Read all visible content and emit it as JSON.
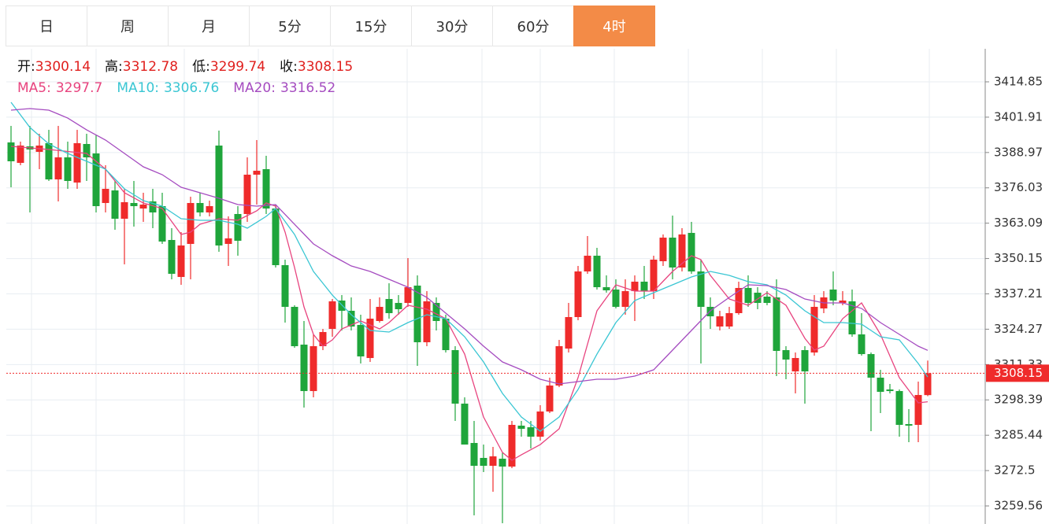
{
  "tabs": {
    "items": [
      "日",
      "周",
      "月",
      "5分",
      "15分",
      "30分",
      "60分",
      "4时"
    ],
    "active": 7
  },
  "chart_data": {
    "type": "candlestick",
    "ohlc_labels": [
      "开:",
      "高:",
      "低:",
      "收:"
    ],
    "up_color": "#ef2b2b",
    "down_color": "#1fa53b",
    "open": [
      3392.66,
      3385.17,
      3391.22,
      3389.21,
      3392.38,
      3379.12,
      3387.19,
      3377.97,
      3392.09,
      3388.63,
      3370.48,
      3375.09,
      3364.72,
      3370.48,
      3368.46,
      3371.06,
      3369.33,
      3356.94,
      3343.4,
      3355.5,
      3370.48,
      3367.02,
      3391.51,
      3355.5,
      3366.45,
      3366.45,
      3380.85,
      3382.87,
      3368.46,
      3347.72,
      3332.45,
      3318.62,
      3301.62,
      3318.05,
      3324.38,
      3334.76,
      3331.01,
      3325.82,
      3313.72,
      3327.27,
      3335.33,
      3333.89,
      3333.89,
      3340.23,
      3319.49,
      3333.89,
      3328.13,
      3316.61,
      3297.01,
      3282.61,
      3277.14,
      3274.25,
      3276.85,
      3273.97,
      3288.95,
      3288.37,
      3284.91,
      3294.13,
      3303.64,
      3317.18,
      3328.71,
      3345.42,
      3351.18,
      3339.65,
      3338.79,
      3332.45,
      3338.21,
      3341.67,
      3338.21,
      3349.16,
      3357.8,
      3346.86,
      3359.53,
      3345.42,
      3332.45,
      3325.25,
      3325.25,
      3330.15,
      3339.37,
      3337.64,
      3336.2,
      3335.91,
      3316.61,
      3308.82,
      3316.61,
      3315.74,
      3331.87,
      3338.79,
      3333.89,
      3334.47,
      3322.37,
      3315.16,
      3306.52,
      3302.2,
      3301.62,
      3289.52,
      3289.24,
      3300.14
    ],
    "high": [
      3398.71,
      3392.95,
      3398.71,
      3395.83,
      3397.27,
      3398.71,
      3392.95,
      3397.27,
      3395.83,
      3395.26,
      3384.31,
      3378.55,
      3375.67,
      3378.55,
      3374.23,
      3375.67,
      3374.23,
      3361.26,
      3359.82,
      3372.78,
      3374.23,
      3371.34,
      3396.99,
      3365.58,
      3369.33,
      3387.19,
      3393.53,
      3387.77,
      3369.9,
      3349.74,
      3333.03,
      3327.27,
      3322.37,
      3324.38,
      3335.33,
      3336.77,
      3335.91,
      3329.57,
      3335.33,
      3335.91,
      3341.09,
      3336.77,
      3350.31,
      3343.97,
      3338.21,
      3335.91,
      3329.57,
      3318.05,
      3299.32,
      3290.68,
      3282.03,
      3281.17,
      3279.15,
      3290.68,
      3290.68,
      3290.68,
      3296.44,
      3306.52,
      3320.35,
      3333.89,
      3347.43,
      3358.38,
      3354.06,
      3343.97,
      3342.53,
      3342.53,
      3343.97,
      3347.43,
      3351.18,
      3358.96,
      3365.87,
      3361.26,
      3363.57,
      3349.74,
      3335.91,
      3331.01,
      3332.45,
      3341.67,
      3343.97,
      3339.65,
      3338.21,
      3342.53,
      3318.05,
      3315.74,
      3318.05,
      3336.77,
      3338.21,
      3345.42,
      3338.21,
      3338.79,
      3330.15,
      3315.74,
      3309.4,
      3304.22,
      3302.2,
      3295.0,
      3305.08,
      3312.78
    ],
    "low": [
      3376.24,
      3384.31,
      3367.02,
      3382.87,
      3378.55,
      3371.06,
      3375.67,
      3375.67,
      3378.55,
      3367.02,
      3367.02,
      3360.68,
      3348.01,
      3361.84,
      3363.57,
      3361.26,
      3355.5,
      3342.53,
      3340.52,
      3342.53,
      3365.58,
      3365.58,
      3352.62,
      3347.43,
      3351.18,
      3363.57,
      3369.9,
      3366.45,
      3346.86,
      3326.69,
      3317.47,
      3295.57,
      3299.32,
      3316.61,
      3321.5,
      3323.81,
      3323.81,
      3311.71,
      3312.28,
      3326.69,
      3328.13,
      3329.57,
      3332.45,
      3310.84,
      3318.05,
      3323.81,
      3315.74,
      3290.68,
      3282.03,
      3256.1,
      3271.95,
      3264.75,
      3253.22,
      3273.39,
      3284.91,
      3280.59,
      3283.47,
      3293.56,
      3303.06,
      3315.74,
      3327.55,
      3344.55,
      3338.79,
      3337.64,
      3331.87,
      3329.57,
      3327.27,
      3335.33,
      3335.33,
      3347.43,
      3342.53,
      3345.42,
      3344.55,
      3311.71,
      3324.38,
      3323.81,
      3324.38,
      3329.57,
      3332.45,
      3331.59,
      3333.03,
      3307.1,
      3305.95,
      3300.76,
      3297.01,
      3314.59,
      3330.15,
      3333.03,
      3333.03,
      3321.5,
      3314.59,
      3286.93,
      3293.56,
      3300.76,
      3284.91,
      3282.9,
      3282.9,
      3299.74
    ],
    "close": [
      3385.75,
      3391.51,
      3390.07,
      3391.51,
      3379.12,
      3387.19,
      3378.55,
      3392.38,
      3387.19,
      3369.33,
      3375.67,
      3364.72,
      3370.77,
      3369.33,
      3369.9,
      3367.02,
      3356.36,
      3344.55,
      3354.92,
      3370.48,
      3367.02,
      3369.33,
      3354.92,
      3357.52,
      3356.65,
      3380.85,
      3382.29,
      3368.46,
      3347.72,
      3332.45,
      3318.05,
      3301.62,
      3318.05,
      3323.23,
      3334.47,
      3331.01,
      3325.25,
      3314.3,
      3328.13,
      3332.45,
      3330.15,
      3331.59,
      3339.65,
      3319.49,
      3334.47,
      3327.27,
      3316.61,
      3297.01,
      3282.03,
      3274.25,
      3274.25,
      3277.71,
      3273.97,
      3289.24,
      3287.8,
      3284.91,
      3294.13,
      3303.64,
      3318.05,
      3328.71,
      3345.42,
      3351.18,
      3339.65,
      3338.5,
      3332.45,
      3338.21,
      3341.67,
      3338.21,
      3349.74,
      3357.8,
      3346.86,
      3358.96,
      3345.42,
      3332.45,
      3328.99,
      3328.99,
      3330.15,
      3339.37,
      3333.89,
      3333.89,
      3333.89,
      3316.32,
      3313.15,
      3313.72,
      3308.82,
      3332.45,
      3335.91,
      3334.76,
      3334.76,
      3322.37,
      3315.16,
      3306.52,
      3301.34,
      3301.62,
      3289.24,
      3288.95,
      3300.18,
      3308.15
    ],
    "series": [
      {
        "name": "MA5:",
        "color": "#e8447f",
        "values": [
          3391.22,
          3390.93,
          3390.65,
          3390.36,
          3390.07,
          3389.71,
          3389.35,
          3388.99,
          3388.63,
          3385.75,
          3382.87,
          3378.55,
          3374.23,
          3372.36,
          3370.48,
          3369.47,
          3368.46,
          3363.71,
          3358.96,
          3359.82,
          3362.7,
          3363.71,
          3364.72,
          3364.43,
          3364.14,
          3365.87,
          3367.6,
          3370.48,
          3369.33,
          3359.82,
          3346.86,
          3332.45,
          3322.37,
          3318.05,
          3320.35,
          3324.38,
          3325.83,
          3327.27,
          3325.83,
          3324.38,
          3326.69,
          3329.86,
          3333.03,
          3332.31,
          3331.59,
          3329.86,
          3328.13,
          3321.65,
          3315.16,
          3303.64,
          3292.12,
          3285.64,
          3279.15,
          3276.27,
          3278.29,
          3280.16,
          3282.03,
          3284.92,
          3287.8,
          3297.16,
          3306.52,
          3318.77,
          3331.01,
          3335.77,
          3340.52,
          3339.37,
          3338.21,
          3338.21,
          3338.21,
          3341.82,
          3345.42,
          3348.3,
          3351.18,
          3349.74,
          3343.97,
          3339.65,
          3335.33,
          3334.18,
          3333.03,
          3335.34,
          3337.64,
          3335.34,
          3333.03,
          3326.98,
          3320.93,
          3316.61,
          3318.05,
          3323.09,
          3328.13,
          3331.01,
          3333.89,
          3328.13,
          3322.37,
          3314.45,
          3306.52,
          3301.91,
          3297.3,
          3297.7
        ]
      },
      {
        "name": "MA10:",
        "color": "#3ac6d3",
        "values": [
          3407.36,
          3402.75,
          3398.14,
          3395.12,
          3392.09,
          3390.36,
          3388.63,
          3387.19,
          3385.75,
          3384.31,
          3382.87,
          3379.27,
          3375.67,
          3373.51,
          3371.34,
          3370.34,
          3369.33,
          3367.03,
          3364.72,
          3364.43,
          3364.14,
          3364.14,
          3364.14,
          3363.42,
          3362.7,
          3361.26,
          3363.42,
          3365.58,
          3368.46,
          3363.71,
          3358.96,
          3352.19,
          3345.42,
          3341.1,
          3336.77,
          3333.17,
          3329.57,
          3326.69,
          3323.81,
          3323.52,
          3323.23,
          3324.96,
          3326.69,
          3328.13,
          3329.57,
          3328.85,
          3328.13,
          3324.82,
          3321.5,
          3316.89,
          3312.28,
          3306.52,
          3300.76,
          3296.44,
          3292.12,
          3289.53,
          3286.93,
          3289.53,
          3292.12,
          3297.16,
          3302.2,
          3308.68,
          3315.16,
          3320.93,
          3326.69,
          3330.73,
          3334.76,
          3336.2,
          3337.64,
          3339.08,
          3340.52,
          3341.96,
          3343.4,
          3344.41,
          3345.42,
          3344.7,
          3343.97,
          3342.82,
          3341.67,
          3341.1,
          3340.52,
          3338.65,
          3336.77,
          3333.89,
          3331.01,
          3328.85,
          3326.69,
          3326.69,
          3326.69,
          3326.4,
          3326.11,
          3323.81,
          3321.5,
          3320.93,
          3320.35,
          3316.03,
          3311.71,
          3306.76
        ]
      },
      {
        "name": "MA20:",
        "color": "#a54cc0",
        "values": [
          3404.48,
          3404.77,
          3405.05,
          3404.77,
          3404.48,
          3403.04,
          3401.59,
          3399.43,
          3397.27,
          3395.4,
          3393.53,
          3391.08,
          3388.63,
          3386.18,
          3383.73,
          3382.29,
          3380.85,
          3378.55,
          3376.24,
          3375.24,
          3374.23,
          3373.22,
          3372.21,
          3371.06,
          3369.9,
          3369.62,
          3369.33,
          3369.62,
          3369.9,
          3366.3,
          3362.7,
          3359.1,
          3355.5,
          3353.34,
          3351.18,
          3349.31,
          3347.43,
          3346.43,
          3345.42,
          3343.98,
          3342.53,
          3341.09,
          3339.65,
          3337.78,
          3335.91,
          3333.03,
          3330.15,
          3327.27,
          3324.38,
          3321.22,
          3318.05,
          3315.17,
          3312.28,
          3310.84,
          3309.4,
          3307.68,
          3305.95,
          3305.09,
          3304.22,
          3304.65,
          3305.08,
          3305.52,
          3305.95,
          3305.95,
          3305.95,
          3306.53,
          3307.1,
          3308.25,
          3309.4,
          3313.01,
          3316.61,
          3320.21,
          3323.81,
          3327.41,
          3331.01,
          3333.46,
          3335.91,
          3338.22,
          3340.52,
          3340.38,
          3340.23,
          3339.51,
          3338.79,
          3337.06,
          3335.33,
          3334.61,
          3333.89,
          3333.89,
          3333.89,
          3332.88,
          3331.87,
          3329.28,
          3326.69,
          3324.53,
          3322.37,
          3320.21,
          3318.05,
          3316.52
        ]
      }
    ],
    "ylim": [
      3252.94,
      3426.95
    ],
    "yticks": [
      3414.85,
      3401.91,
      3388.97,
      3376.03,
      3363.09,
      3350.15,
      3337.21,
      3324.27,
      3311.33,
      3298.39,
      3285.44,
      3272.5,
      3259.56
    ],
    "grid": true
  }
}
